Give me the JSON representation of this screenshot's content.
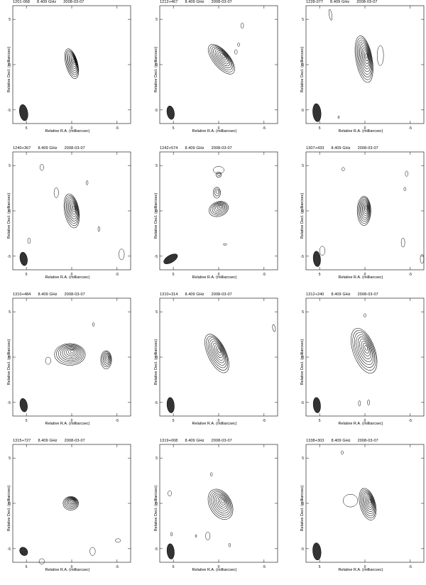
{
  "axis": {
    "xlabel": "Relative R.A. (milliarcsec)",
    "ylabel": "Relative Decl. (milliarcsec)",
    "xticks": [
      "5",
      "0",
      "-5"
    ],
    "yticks": [
      "5",
      "0",
      "-5"
    ]
  },
  "panels": [
    {
      "source": "1201-068",
      "freq": "8.409 GHz",
      "date": "2008-03-07"
    },
    {
      "source": "1212+467",
      "freq": "8.409 GHz",
      "date": "2008-03-07"
    },
    {
      "source": "1228-077",
      "freq": "8.409 GHz",
      "date": "2008-03-07"
    },
    {
      "source": "1240+367",
      "freq": "8.409 GHz",
      "date": "2008-03-07"
    },
    {
      "source": "1242+574",
      "freq": "8.409 GHz",
      "date": "2008-03-07"
    },
    {
      "source": "1307+433",
      "freq": "8.409 GHz",
      "date": "2008-03-07"
    },
    {
      "source": "1310+484",
      "freq": "8.409 GHz",
      "date": "2008-03-07"
    },
    {
      "source": "1310+314",
      "freq": "8.409 GHz",
      "date": "2008-03-07"
    },
    {
      "source": "1312+240",
      "freq": "8.409 GHz",
      "date": "2008-03-07"
    },
    {
      "source": "1315+727",
      "freq": "8.409 GHz",
      "date": "2008-03-07"
    },
    {
      "source": "1319+008",
      "freq": "8.409 GHz",
      "date": "2008-03-07"
    },
    {
      "source": "1338+303",
      "freq": "8.409 GHz",
      "date": "2008-03-07"
    }
  ]
}
